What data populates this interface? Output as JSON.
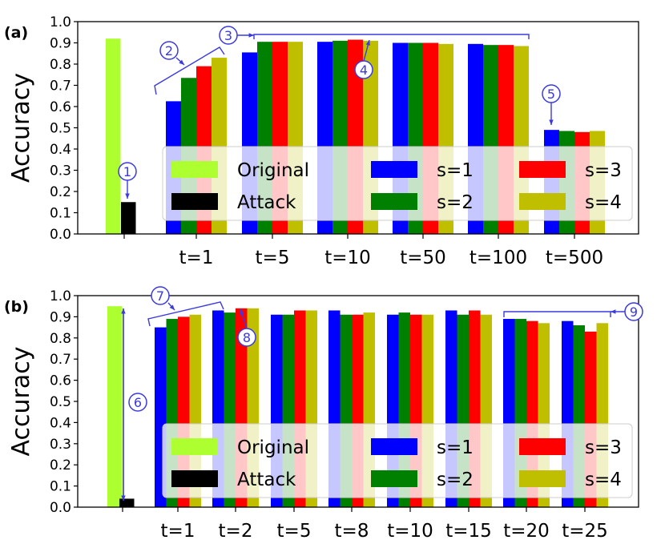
{
  "colors": {
    "original": "#adff2f",
    "attack": "#000000",
    "s1": "#0000ff",
    "s2": "#008000",
    "s3": "#ff0000",
    "s4": "#bfbf00",
    "annotation": "#3a3ae0"
  },
  "legend": {
    "original": "Original",
    "attack": "Attack",
    "s1": "s=1",
    "s2": "s=2",
    "s3": "s=3",
    "s4": "s=4"
  },
  "chart_data": [
    {
      "type": "bar",
      "panel_label": "(a)",
      "ylabel": "Accuracy",
      "ylim": [
        0,
        1.0
      ],
      "yticks": [
        "0.0",
        "0.1",
        "0.2",
        "0.3",
        "0.4",
        "0.5",
        "0.6",
        "0.7",
        "0.8",
        "0.9",
        "1.0"
      ],
      "original": 0.92,
      "attack": 0.15,
      "categories": [
        "t=1",
        "t=5",
        "t=10",
        "t=50",
        "t=100",
        "t=500"
      ],
      "series": [
        {
          "name": "s=1",
          "values": [
            0.625,
            0.855,
            0.905,
            0.9,
            0.895,
            0.49
          ]
        },
        {
          "name": "s=2",
          "values": [
            0.735,
            0.905,
            0.91,
            0.9,
            0.89,
            0.485
          ]
        },
        {
          "name": "s=3",
          "values": [
            0.79,
            0.905,
            0.915,
            0.9,
            0.89,
            0.48
          ]
        },
        {
          "name": "s=4",
          "values": [
            0.83,
            0.905,
            0.91,
            0.895,
            0.885,
            0.485
          ]
        }
      ],
      "legend_position": "lower-right",
      "annotations": [
        "1",
        "2",
        "3",
        "4",
        "5"
      ]
    },
    {
      "type": "bar",
      "panel_label": "(b)",
      "ylabel": "Accuracy",
      "ylim": [
        0,
        1.0
      ],
      "yticks": [
        "0.0",
        "0.1",
        "0.2",
        "0.3",
        "0.4",
        "0.5",
        "0.6",
        "0.7",
        "0.8",
        "0.9",
        "1.0"
      ],
      "original": 0.95,
      "attack": 0.04,
      "categories": [
        "t=1",
        "t=2",
        "t=5",
        "t=8",
        "t=10",
        "t=15",
        "t=20",
        "t=25"
      ],
      "series": [
        {
          "name": "s=1",
          "values": [
            0.85,
            0.93,
            0.91,
            0.93,
            0.91,
            0.93,
            0.89,
            0.88
          ]
        },
        {
          "name": "s=2",
          "values": [
            0.89,
            0.92,
            0.91,
            0.91,
            0.92,
            0.91,
            0.89,
            0.86
          ]
        },
        {
          "name": "s=3",
          "values": [
            0.9,
            0.94,
            0.93,
            0.91,
            0.91,
            0.93,
            0.88,
            0.83
          ]
        },
        {
          "name": "s=4",
          "values": [
            0.91,
            0.94,
            0.93,
            0.92,
            0.91,
            0.91,
            0.87,
            0.87
          ]
        }
      ],
      "legend_position": "lower-right",
      "annotations": [
        "6",
        "7",
        "8",
        "9"
      ]
    }
  ]
}
